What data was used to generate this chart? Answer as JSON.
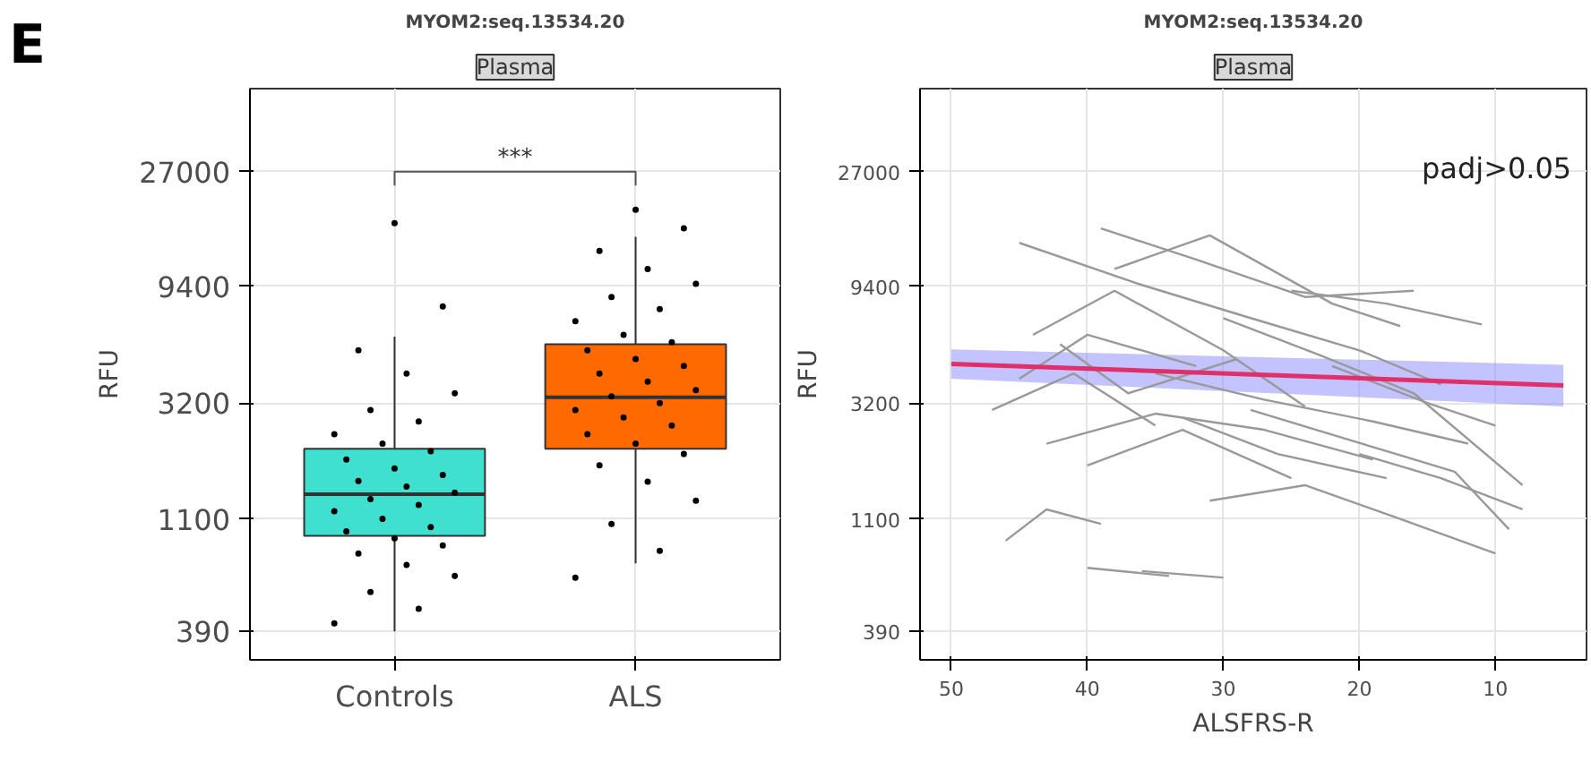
{
  "chart_data": [
    {
      "type": "box",
      "title": "MYOM2:seq.13534.20",
      "subtitle": "Plasma",
      "ylabel": "RFU",
      "categories": [
        "Controls",
        "ALS"
      ],
      "log": "y",
      "ylim": [
        300,
        58000
      ],
      "yticks": [
        390,
        1100,
        3200,
        9400,
        27000
      ],
      "grid": true,
      "annotations": [
        "E",
        "***"
      ],
      "colors": [
        "#3fe0d0",
        "#ff6a00"
      ],
      "boxes": [
        {
          "low": 390,
          "q1": 940,
          "median": 1380,
          "q3": 2100,
          "high": 5900
        },
        {
          "low": 730,
          "q1": 2100,
          "median": 3370,
          "q3": 5500,
          "high": 14800
        }
      ],
      "series": [
        {
          "type": "scatter",
          "color": "#000000",
          "x": [
            "Controls",
            "Controls",
            "Controls",
            "Controls",
            "Controls",
            "Controls",
            "Controls",
            "Controls",
            "Controls",
            "Controls",
            "Controls",
            "Controls",
            "Controls",
            "Controls",
            "Controls",
            "Controls",
            "Controls",
            "Controls",
            "Controls",
            "Controls",
            "Controls",
            "Controls",
            "Controls",
            "Controls",
            "Controls",
            "Controls",
            "Controls",
            "Controls",
            "Controls",
            "Controls"
          ],
          "values": [
            420,
            480,
            560,
            650,
            720,
            800,
            860,
            920,
            980,
            1020,
            1100,
            1180,
            1250,
            1320,
            1400,
            1480,
            1560,
            1650,
            1750,
            1900,
            2050,
            2200,
            2400,
            2700,
            3000,
            3500,
            4200,
            5200,
            7800,
            16800
          ]
        },
        {
          "type": "scatter",
          "color": "#000000",
          "x": [
            "ALS",
            "ALS",
            "ALS",
            "ALS",
            "ALS",
            "ALS",
            "ALS",
            "ALS",
            "ALS",
            "ALS",
            "ALS",
            "ALS",
            "ALS",
            "ALS",
            "ALS",
            "ALS",
            "ALS",
            "ALS",
            "ALS",
            "ALS",
            "ALS",
            "ALS",
            "ALS",
            "ALS",
            "ALS",
            "ALS",
            "ALS",
            "ALS",
            "ALS",
            "ALS"
          ],
          "values": [
            640,
            820,
            1050,
            1300,
            1550,
            1800,
            2000,
            2200,
            2400,
            2600,
            2800,
            3000,
            3200,
            3400,
            3600,
            3900,
            4200,
            4500,
            4800,
            5200,
            5600,
            6000,
            6800,
            7600,
            8500,
            9600,
            11000,
            13000,
            16000,
            19000
          ]
        }
      ]
    },
    {
      "type": "line",
      "title": "MYOM2:seq.13534.20",
      "subtitle": "Plasma",
      "xlabel": "ALSFRS-R",
      "ylabel": "RFU",
      "log": "y",
      "ylim": [
        300,
        58000
      ],
      "yticks": [
        390,
        1100,
        3200,
        9400,
        27000
      ],
      "xlim": [
        52.3,
        3.3
      ],
      "xticks": [
        50,
        40,
        30,
        20,
        10
      ],
      "grid": true,
      "annotations": [
        "padj>0.05"
      ],
      "series": [
        {
          "color": "#999999",
          "x": [
            44,
            38,
            30,
            24
          ],
          "values": [
            6000,
            9000,
            5200,
            3100
          ]
        },
        {
          "color": "#999999",
          "x": [
            47,
            41,
            35
          ],
          "values": [
            3000,
            4200,
            2600
          ]
        },
        {
          "color": "#999999",
          "x": [
            45,
            36,
            28,
            20,
            14
          ],
          "values": [
            14000,
            9500,
            7000,
            5200,
            3800
          ]
        },
        {
          "color": "#999999",
          "x": [
            40,
            33,
            25
          ],
          "values": [
            1800,
            2500,
            1600
          ]
        },
        {
          "color": "#999999",
          "x": [
            38,
            31,
            22,
            17
          ],
          "values": [
            11000,
            15000,
            8000,
            6500
          ]
        },
        {
          "color": "#999999",
          "x": [
            42,
            37,
            29
          ],
          "values": [
            5500,
            3500,
            4800
          ]
        },
        {
          "color": "#999999",
          "x": [
            35,
            27,
            19,
            12
          ],
          "values": [
            4200,
            3300,
            2700,
            2200
          ]
        },
        {
          "color": "#999999",
          "x": [
            30,
            23,
            16,
            8
          ],
          "values": [
            7000,
            5000,
            3500,
            1500
          ]
        },
        {
          "color": "#999999",
          "x": [
            46,
            43,
            39
          ],
          "values": [
            900,
            1200,
            1050
          ]
        },
        {
          "color": "#999999",
          "x": [
            40,
            34
          ],
          "values": [
            700,
            650
          ]
        },
        {
          "color": "#999999",
          "x": [
            36,
            30
          ],
          "values": [
            680,
            640
          ]
        },
        {
          "color": "#999999",
          "x": [
            33,
            26,
            18
          ],
          "values": [
            2800,
            2000,
            1600
          ]
        },
        {
          "color": "#999999",
          "x": [
            28,
            21,
            13,
            9
          ],
          "values": [
            3000,
            2300,
            1700,
            1000
          ]
        },
        {
          "color": "#999999",
          "x": [
            25,
            18,
            11
          ],
          "values": [
            9000,
            8000,
            6600
          ]
        },
        {
          "color": "#999999",
          "x": [
            43,
            35,
            27,
            19
          ],
          "values": [
            2200,
            2900,
            2500,
            1900
          ]
        },
        {
          "color": "#999999",
          "x": [
            39,
            32,
            24,
            16
          ],
          "values": [
            16000,
            12000,
            8500,
            9000
          ]
        },
        {
          "color": "#999999",
          "x": [
            22,
            15,
            10
          ],
          "values": [
            4500,
            3200,
            2600
          ]
        },
        {
          "color": "#999999",
          "x": [
            31,
            24,
            17,
            10
          ],
          "values": [
            1300,
            1500,
            1100,
            800
          ]
        },
        {
          "color": "#999999",
          "x": [
            45,
            40,
            32
          ],
          "values": [
            4000,
            6000,
            4500
          ]
        },
        {
          "color": "#999999",
          "x": [
            20,
            14,
            8
          ],
          "values": [
            2000,
            1600,
            1200
          ]
        },
        {
          "color": "#e0306a",
          "x": [
            50,
            5
          ],
          "values": [
            4590,
            3760
          ],
          "lower": [
            4000,
            3100
          ],
          "upper": [
            5250,
            4550
          ]
        }
      ]
    }
  ]
}
